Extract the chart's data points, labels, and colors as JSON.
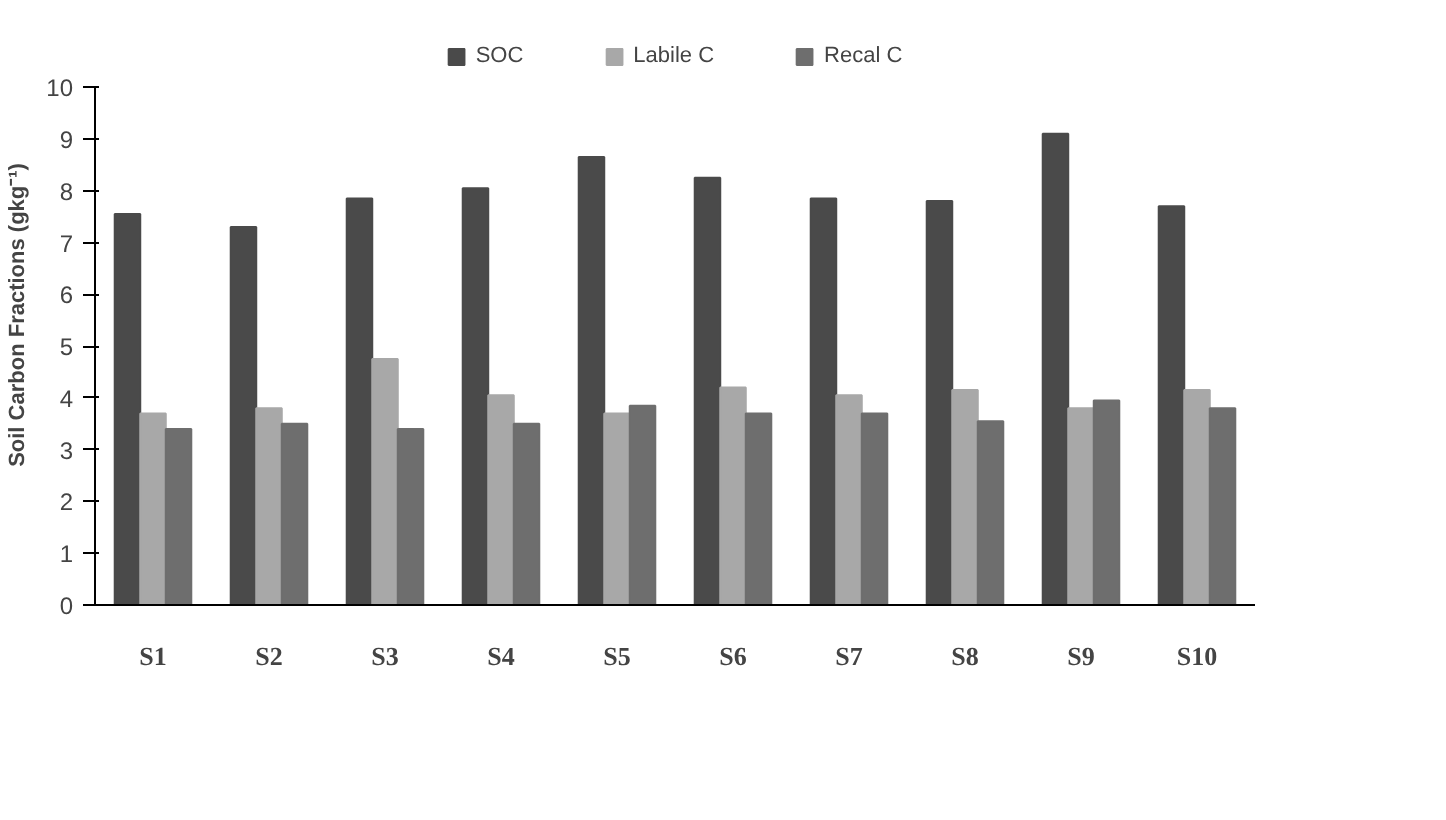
{
  "chart_data": {
    "type": "bar",
    "ylabel": "Soil Carbon Fractions (gkg⁻¹)",
    "categories": [
      "S1",
      "S2",
      "S3",
      "S4",
      "S5",
      "S6",
      "S7",
      "S8",
      "S9",
      "S10"
    ],
    "series": [
      {
        "name": "SOC",
        "color": "#4a4a4a",
        "values": [
          7.55,
          7.3,
          7.85,
          8.05,
          8.65,
          8.25,
          7.85,
          7.8,
          9.1,
          7.7
        ]
      },
      {
        "name": "Labile C",
        "color": "#a8a8a8",
        "values": [
          3.7,
          3.8,
          4.75,
          4.05,
          3.7,
          4.2,
          4.05,
          4.15,
          3.8,
          4.15
        ]
      },
      {
        "name": "Recal C",
        "color": "#6e6e6e",
        "values": [
          3.4,
          3.5,
          3.4,
          3.5,
          3.85,
          3.7,
          3.7,
          3.55,
          3.95,
          3.8
        ]
      }
    ],
    "ylim": [
      0,
      10
    ],
    "yticks": [
      0,
      1,
      2,
      3,
      4,
      5,
      6,
      7,
      8,
      9,
      10
    ],
    "grid": false,
    "legend": "top"
  }
}
